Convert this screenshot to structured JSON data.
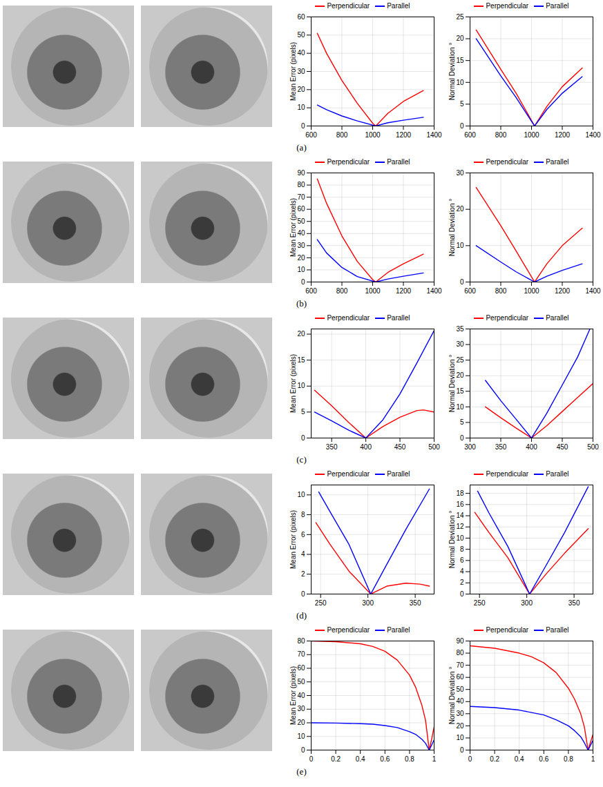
{
  "panel_labels": [
    "(a)",
    "(b)",
    "(c)",
    "(d)",
    "(e)"
  ],
  "chart_data": [
    {
      "type": "line",
      "y_label": "Mean Error (pixels)",
      "xlim": [
        600,
        1400
      ],
      "xticks": [
        600,
        800,
        1000,
        1200,
        1400
      ],
      "ylim": [
        0,
        60
      ],
      "yticks": [
        0,
        10,
        20,
        30,
        40,
        50,
        60
      ],
      "grid": true,
      "legend": "top",
      "series": [
        {
          "name": "Perpendicular",
          "color": "#ff0000",
          "x": [
            640,
            700,
            800,
            900,
            1000,
            1020,
            1100,
            1200,
            1330
          ],
          "values": [
            51,
            40,
            25,
            12.5,
            1.5,
            0,
            7,
            13.5,
            19.5
          ]
        },
        {
          "name": "Parallel",
          "color": "#0000ff",
          "x": [
            640,
            700,
            800,
            900,
            1020,
            1100,
            1200,
            1330
          ],
          "values": [
            11.5,
            9,
            5.5,
            2.8,
            0,
            1.8,
            3.2,
            4.8
          ]
        }
      ]
    },
    {
      "type": "line",
      "y_label": "Normal Deviation °",
      "xlim": [
        600,
        1400
      ],
      "xticks": [
        600,
        800,
        1000,
        1200,
        1400
      ],
      "ylim": [
        0,
        25
      ],
      "yticks": [
        0,
        5,
        10,
        15,
        20,
        25
      ],
      "grid": true,
      "legend": "top",
      "series": [
        {
          "name": "Perpendicular",
          "color": "#ff0000",
          "x": [
            640,
            800,
            900,
            1020,
            1100,
            1200,
            1330
          ],
          "values": [
            22,
            13,
            7.5,
            0,
            4.5,
            9,
            13.3
          ]
        },
        {
          "name": "Parallel",
          "color": "#0000ff",
          "x": [
            640,
            800,
            900,
            1020,
            1100,
            1200,
            1330
          ],
          "values": [
            20,
            11.5,
            6.5,
            0,
            3.8,
            7.5,
            11.3
          ]
        }
      ]
    },
    {
      "type": "line",
      "y_label": "Mean Error (pixels)",
      "xlim": [
        600,
        1400
      ],
      "xticks": [
        600,
        800,
        1000,
        1200,
        1400
      ],
      "ylim": [
        0,
        90
      ],
      "yticks": [
        0,
        10,
        20,
        30,
        40,
        50,
        60,
        70,
        80,
        90
      ],
      "grid": true,
      "legend": "top",
      "series": [
        {
          "name": "Perpendicular",
          "color": "#ff0000",
          "x": [
            640,
            700,
            800,
            900,
            1000,
            1020,
            1100,
            1200,
            1330
          ],
          "values": [
            85,
            65,
            38,
            17,
            2,
            0,
            8,
            15,
            23
          ]
        },
        {
          "name": "Parallel",
          "color": "#0000ff",
          "x": [
            640,
            700,
            800,
            900,
            1020,
            1100,
            1200,
            1330
          ],
          "values": [
            35,
            24,
            12,
            4.5,
            0,
            2.5,
            4.8,
            7.5
          ]
        }
      ]
    },
    {
      "type": "line",
      "y_label": "Normal Deviation °",
      "xlim": [
        600,
        1400
      ],
      "xticks": [
        600,
        800,
        1000,
        1200,
        1400
      ],
      "ylim": [
        0,
        30
      ],
      "yticks": [
        0,
        10,
        20,
        30
      ],
      "grid": true,
      "legend": "top",
      "series": [
        {
          "name": "Perpendicular",
          "color": "#ff0000",
          "x": [
            640,
            800,
            900,
            1020,
            1100,
            1200,
            1330
          ],
          "values": [
            26,
            15.5,
            8.5,
            0,
            5,
            10,
            14.8
          ]
        },
        {
          "name": "Parallel",
          "color": "#0000ff",
          "x": [
            640,
            800,
            900,
            1020,
            1100,
            1200,
            1330
          ],
          "values": [
            10,
            5.5,
            2.8,
            0,
            1.6,
            3.2,
            5
          ]
        }
      ]
    },
    {
      "type": "line",
      "y_label": "Mean Error (pixels)",
      "xlim": [
        320,
        500
      ],
      "xticks": [
        350,
        400,
        450,
        500
      ],
      "ylim": [
        0,
        21
      ],
      "yticks": [
        0,
        5,
        10,
        15,
        20
      ],
      "grid": true,
      "legend": "top",
      "series": [
        {
          "name": "Perpendicular",
          "color": "#ff0000",
          "x": [
            325,
            350,
            375,
            400,
            425,
            450,
            475,
            485,
            500
          ],
          "values": [
            9.2,
            6.2,
            3,
            0,
            2.2,
            4,
            5.3,
            5.4,
            5
          ]
        },
        {
          "name": "Parallel",
          "color": "#0000ff",
          "x": [
            325,
            350,
            375,
            400,
            425,
            450,
            475,
            500
          ],
          "values": [
            5,
            3.3,
            1.5,
            0,
            3.5,
            8.5,
            14.5,
            20.7
          ]
        }
      ]
    },
    {
      "type": "line",
      "y_label": "Normal Deviation °",
      "xlim": [
        300,
        500
      ],
      "xticks": [
        300,
        350,
        400,
        450,
        500
      ],
      "ylim": [
        0,
        35
      ],
      "yticks": [
        0,
        5,
        10,
        15,
        20,
        25,
        30,
        35
      ],
      "grid": true,
      "legend": "top",
      "series": [
        {
          "name": "Perpendicular",
          "color": "#ff0000",
          "x": [
            325,
            350,
            375,
            400,
            425,
            450,
            475,
            500
          ],
          "values": [
            10,
            6.5,
            3.2,
            0,
            4,
            8.5,
            13,
            17.5
          ]
        },
        {
          "name": "Parallel",
          "color": "#0000ff",
          "x": [
            325,
            350,
            375,
            400,
            425,
            450,
            475,
            495
          ],
          "values": [
            18.5,
            12,
            6,
            0,
            8,
            17,
            26,
            35
          ]
        }
      ]
    },
    {
      "type": "line",
      "y_label": "Mean Error (pixels)",
      "xlim": [
        240,
        370
      ],
      "xticks": [
        250,
        300,
        350
      ],
      "ylim": [
        0,
        11
      ],
      "yticks": [
        0,
        2,
        4,
        6,
        8,
        10
      ],
      "grid": true,
      "legend": "top",
      "series": [
        {
          "name": "Perpendicular",
          "color": "#ff0000",
          "x": [
            245,
            260,
            280,
            303,
            320,
            340,
            355,
            365
          ],
          "values": [
            7.2,
            5,
            2.3,
            0,
            0.8,
            1.1,
            1,
            0.8
          ]
        },
        {
          "name": "Parallel",
          "color": "#0000ff",
          "x": [
            248,
            260,
            280,
            303,
            320,
            340,
            365
          ],
          "values": [
            10.3,
            8.3,
            5,
            0,
            3,
            6.5,
            10.6
          ]
        }
      ]
    },
    {
      "type": "line",
      "y_label": "Normal Deviation °",
      "xlim": [
        240,
        370
      ],
      "xticks": [
        250,
        300,
        350
      ],
      "ylim": [
        0,
        19.5
      ],
      "yticks": [
        0,
        2,
        4,
        6,
        8,
        10,
        12,
        14,
        16,
        18
      ],
      "grid": true,
      "legend": "top",
      "series": [
        {
          "name": "Perpendicular",
          "color": "#ff0000",
          "x": [
            245,
            260,
            280,
            303,
            320,
            340,
            365
          ],
          "values": [
            14.6,
            11,
            6.5,
            0,
            3.5,
            7.3,
            11.7
          ]
        },
        {
          "name": "Parallel",
          "color": "#0000ff",
          "x": [
            248,
            260,
            280,
            303,
            320,
            340,
            365
          ],
          "values": [
            18.4,
            14.5,
            8.5,
            0,
            5,
            11,
            19.2
          ]
        }
      ]
    },
    {
      "type": "line",
      "y_label": "Mean Error (pixels)",
      "xlim": [
        0,
        1
      ],
      "xticks": [
        0,
        0.2,
        0.4,
        0.6,
        0.8,
        1
      ],
      "ylim": [
        0,
        80
      ],
      "yticks": [
        0,
        10,
        20,
        30,
        40,
        50,
        60,
        70,
        80
      ],
      "grid": true,
      "legend": "top",
      "series": [
        {
          "name": "Perpendicular",
          "color": "#ff0000",
          "x": [
            0,
            0.2,
            0.4,
            0.5,
            0.6,
            0.7,
            0.8,
            0.85,
            0.9,
            0.93,
            0.96,
            0.98,
            1
          ],
          "values": [
            80,
            79.5,
            78,
            76,
            72.5,
            66,
            55,
            46,
            33,
            22,
            0,
            8,
            17
          ]
        },
        {
          "name": "Parallel",
          "color": "#0000ff",
          "x": [
            0,
            0.2,
            0.4,
            0.5,
            0.6,
            0.7,
            0.8,
            0.85,
            0.9,
            0.93,
            0.96,
            1
          ],
          "values": [
            20,
            19.8,
            19.4,
            19,
            18,
            16.5,
            13.5,
            11.5,
            8,
            5,
            0,
            7.5
          ]
        }
      ]
    },
    {
      "type": "line",
      "y_label": "Normal Deviation °",
      "xlim": [
        0,
        1
      ],
      "xticks": [
        0,
        0.2,
        0.4,
        0.6,
        0.8,
        1
      ],
      "ylim": [
        0,
        90
      ],
      "yticks": [
        0,
        10,
        20,
        30,
        40,
        50,
        60,
        70,
        80,
        90
      ],
      "grid": true,
      "legend": "top",
      "series": [
        {
          "name": "Perpendicular",
          "color": "#ff0000",
          "x": [
            0,
            0.2,
            0.4,
            0.5,
            0.6,
            0.7,
            0.8,
            0.85,
            0.9,
            0.93,
            0.96,
            1
          ],
          "values": [
            86,
            84,
            80,
            77,
            72,
            64,
            51,
            42,
            30,
            19,
            0,
            13
          ]
        },
        {
          "name": "Parallel",
          "color": "#0000ff",
          "x": [
            0,
            0.2,
            0.4,
            0.5,
            0.6,
            0.7,
            0.8,
            0.85,
            0.9,
            0.93,
            0.96,
            1
          ],
          "values": [
            36,
            35,
            33,
            31,
            29,
            25,
            20,
            16,
            11,
            6,
            0,
            8
          ]
        }
      ]
    }
  ]
}
